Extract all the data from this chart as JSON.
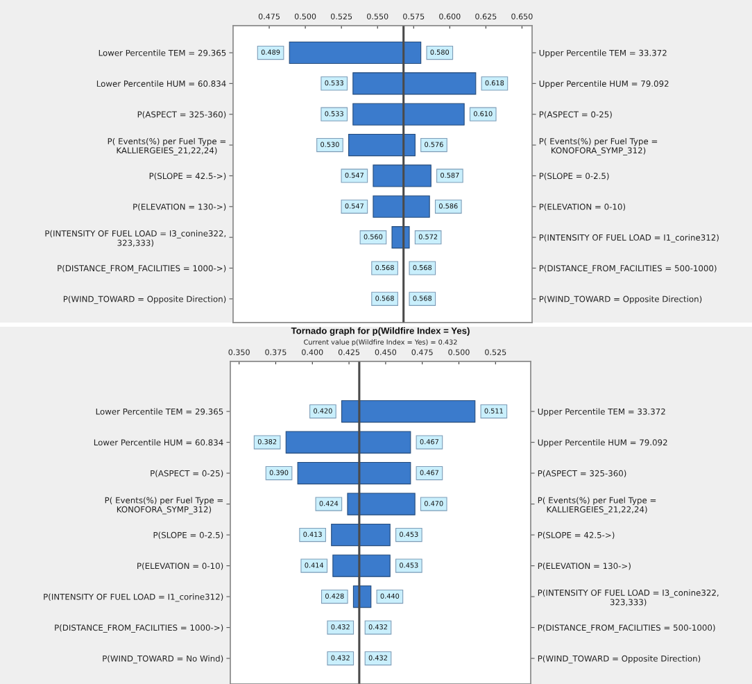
{
  "chart_data": [
    {
      "type": "bar",
      "orientation": "horizontal",
      "categories": [
        "Lower Percentile TEM = 29.365",
        "Lower Percentile HUM = 60.834",
        "P(ASPECT = 325-360)",
        "P( Events(%) per Fuel Type =\nKALLIERGEIES_21,22,24)",
        "P(SLOPE = 42.5->)",
        "P(ELEVATION = 130->)",
        "P(INTENSITY OF FUEL LOAD = I3_conine322,\n323,333)",
        "P(DISTANCE_FROM_FACILITIES = 1000->)",
        "P(WIND_TOWARD = Opposite Direction)"
      ],
      "y2_categories": [
        "Upper Percentile TEM = 33.372",
        "Upper Percentile HUM = 79.092",
        "P(ASPECT = 0-25)",
        "P( Events(%) per Fuel Type =\nKONOFORA_SYMP_312)",
        "P(SLOPE = 0-2.5)",
        "P(ELEVATION = 0-10)",
        "P(INTENSITY OF FUEL LOAD = I1_corine312)",
        "P(DISTANCE_FROM_FACILITIES = 500-1000)",
        "P(WIND_TOWARD = Opposite Direction)"
      ],
      "base": [
        0.489,
        0.533,
        0.533,
        0.53,
        0.547,
        0.547,
        0.56,
        null,
        null
      ],
      "values": [
        0.091,
        0.085,
        0.077,
        0.046,
        0.04,
        0.039,
        0.012,
        null,
        null
      ],
      "color": "#3b7bcc",
      "xlim": [
        0.45,
        0.657
      ],
      "xticks": [
        0.475,
        {
          "value": 0.5,
          "label": "0.500"
        },
        0.525,
        {
          "value": 0.55,
          "label": "0.550"
        },
        0.575,
        {
          "value": 0.6,
          "label": "0.600"
        },
        0.625,
        {
          "value": 0.65,
          "label": "0.650"
        }
      ],
      "ref_lines": [
        {
          "axis": "x",
          "value": 0.568,
          "color": "#4a4a4a"
        }
      ],
      "annotations": [
        {
          "text": "0.489",
          "x": 0.489,
          "y": "Lower Percentile TEM = 29.365"
        },
        {
          "text": "0.580",
          "x": 0.58,
          "y": "Lower Percentile TEM = 29.365"
        },
        {
          "text": "0.533",
          "x": 0.533,
          "y": "Lower Percentile HUM = 60.834"
        },
        {
          "text": "0.618",
          "x": 0.618,
          "y": "Lower Percentile HUM = 60.834"
        },
        {
          "text": "0.533",
          "x": 0.533,
          "y": "P(ASPECT = 325-360)"
        },
        {
          "text": "0.610",
          "x": 0.61,
          "y": "P(ASPECT = 325-360)"
        },
        {
          "text": "0.530",
          "x": 0.53,
          "y": "P( Events(%) per Fuel Type =\nKALLIERGEIES_21,22,24)"
        },
        {
          "text": "0.576",
          "x": 0.576,
          "y": "P( Events(%) per Fuel Type =\nKALLIERGEIES_21,22,24)"
        },
        {
          "text": "0.547",
          "x": 0.547,
          "y": "P(SLOPE = 42.5->)"
        },
        {
          "text": "0.587",
          "x": 0.587,
          "y": "P(SLOPE = 42.5->)"
        },
        {
          "text": "0.547",
          "x": 0.547,
          "y": "P(ELEVATION = 130->)"
        },
        {
          "text": "0.586",
          "x": 0.586,
          "y": "P(ELEVATION = 130->)"
        },
        {
          "text": "0.560",
          "x": 0.56,
          "y": "P(INTENSITY OF FUEL LOAD = I3_conine322,\n323,333)"
        },
        {
          "text": "0.572",
          "x": 0.572,
          "y": "P(INTENSITY OF FUEL LOAD = I3_conine322,\n323,333)"
        },
        {
          "text": "0.568",
          "x": 0.568,
          "y": "P(DISTANCE_FROM_FACILITIES = 1000->)"
        },
        {
          "text": "0.568",
          "x": 0.568,
          "y": "P(DISTANCE_FROM_FACILITIES = 1000->)"
        },
        {
          "text": "0.568",
          "x": 0.568,
          "y": "P(WIND_TOWARD = Opposite Direction)"
        },
        {
          "text": "0.568",
          "x": 0.568,
          "y": "P(WIND_TOWARD = Opposite Direction)"
        }
      ]
    },
    {
      "type": "bar",
      "orientation": "horizontal",
      "title": "Tornado graph for p(Wildfire Index = Yes)",
      "subtitle": "Current value p(Wildfire Index = Yes) = 0.432",
      "categories": [
        "Lower Percentile TEM = 29.365",
        "Lower Percentile HUM = 60.834",
        "P(ASPECT = 0-25)",
        "P( Events(%) per Fuel Type =\nKONOFORA_SYMP_312)",
        "P(SLOPE = 0-2.5)",
        "P(ELEVATION = 0-10)",
        "P(INTENSITY OF FUEL LOAD = I1_corine312)",
        "P(DISTANCE_FROM_FACILITIES = 1000->)",
        "P(WIND_TOWARD = No Wind)"
      ],
      "y2_categories": [
        "Upper Percentile TEM = 33.372",
        "Upper Percentile HUM = 79.092",
        "P(ASPECT = 325-360)",
        "P( Events(%) per Fuel Type =\nKALLIERGEIES_21,22,24)",
        "P(SLOPE = 42.5->)",
        "P(ELEVATION = 130->)",
        "P(INTENSITY OF FUEL LOAD = I3_conine322,\n323,333)",
        "P(DISTANCE_FROM_FACILITIES = 500-1000)",
        "P(WIND_TOWARD = Opposite Direction)"
      ],
      "base": [
        0.42,
        0.382,
        0.39,
        0.424,
        0.413,
        0.414,
        0.428,
        null,
        null
      ],
      "values": [
        0.091,
        0.085,
        0.077,
        0.046,
        0.04,
        0.039,
        0.012,
        null,
        null
      ],
      "color": "#3b7bcc",
      "xlim": [
        0.344,
        0.549
      ],
      "xticks": [
        {
          "value": 0.35,
          "label": "0.350"
        },
        0.375,
        {
          "value": 0.4,
          "label": "0.400"
        },
        0.425,
        {
          "value": 0.45,
          "label": "0.450"
        },
        0.475,
        {
          "value": 0.5,
          "label": "0.500"
        },
        0.525
      ],
      "ref_lines": [
        {
          "axis": "x",
          "value": 0.432,
          "color": "#4a4a4a"
        }
      ],
      "annotations": [
        {
          "text": "0.420",
          "x": 0.42,
          "y": "Lower Percentile TEM = 29.365"
        },
        {
          "text": "0.511",
          "x": 0.511,
          "y": "Lower Percentile TEM = 29.365"
        },
        {
          "text": "0.382",
          "x": 0.382,
          "y": "Lower Percentile HUM = 60.834"
        },
        {
          "text": "0.467",
          "x": 0.467,
          "y": "Lower Percentile HUM = 60.834"
        },
        {
          "text": "0.390",
          "x": 0.39,
          "y": "P(ASPECT = 0-25)"
        },
        {
          "text": "0.467",
          "x": 0.467,
          "y": "P(ASPECT = 0-25)"
        },
        {
          "text": "0.424",
          "x": 0.424,
          "y": "P( Events(%) per Fuel Type =\nKONOFORA_SYMP_312)"
        },
        {
          "text": "0.470",
          "x": 0.47,
          "y": "P( Events(%) per Fuel Type =\nKONOFORA_SYMP_312)"
        },
        {
          "text": "0.413",
          "x": 0.413,
          "y": "P(SLOPE = 0-2.5)"
        },
        {
          "text": "0.453",
          "x": 0.453,
          "y": "P(SLOPE = 0-2.5)"
        },
        {
          "text": "0.414",
          "x": 0.414,
          "y": "P(ELEVATION = 0-10)"
        },
        {
          "text": "0.453",
          "x": 0.453,
          "y": "P(ELEVATION = 0-10)"
        },
        {
          "text": "0.428",
          "x": 0.428,
          "y": "P(INTENSITY OF FUEL LOAD = I1_corine312)"
        },
        {
          "text": "0.440",
          "x": 0.44,
          "y": "P(INTENSITY OF FUEL LOAD = I1_corine312)"
        },
        {
          "text": "0.432",
          "x": 0.432,
          "y": "P(DISTANCE_FROM_FACILITIES = 1000->)"
        },
        {
          "text": "0.432",
          "x": 0.432,
          "y": "P(DISTANCE_FROM_FACILITIES = 1000->)"
        },
        {
          "text": "0.432",
          "x": 0.432,
          "y": "P(WIND_TOWARD = No Wind)"
        },
        {
          "text": "0.432",
          "x": 0.432,
          "y": "P(WIND_TOWARD = No Wind)"
        }
      ]
    }
  ]
}
